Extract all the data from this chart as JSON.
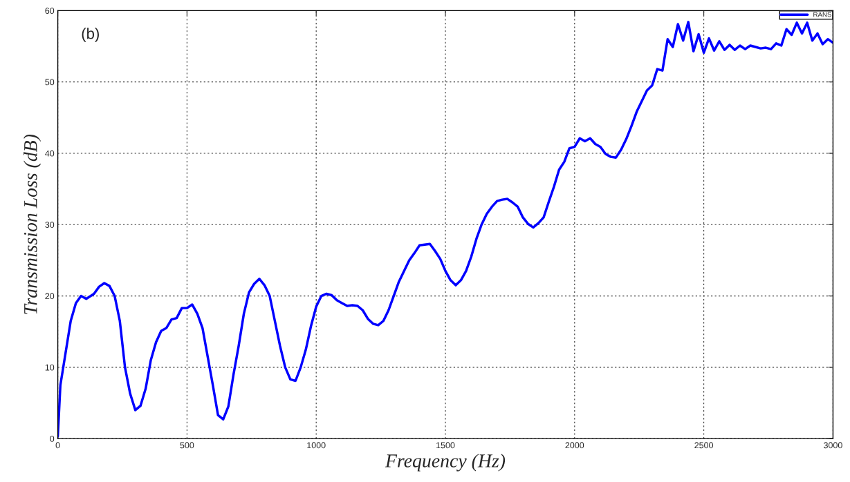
{
  "chart_data": {
    "type": "line",
    "xlabel": "Frequency (Hz)",
    "ylabel": "Transmission Loss (dB)",
    "xlim": [
      0,
      3000
    ],
    "xticks": [
      0,
      500,
      1000,
      1500,
      2000,
      2500,
      3000
    ],
    "ylim": [
      0,
      60
    ],
    "yticks": [
      0,
      10,
      20,
      30,
      40,
      50,
      60
    ],
    "grid": true,
    "legend": "top right",
    "line_style": "solid",
    "marker": "none",
    "annotations": [
      "(b)"
    ],
    "x": [
      0,
      10,
      30,
      50,
      70,
      90,
      110,
      140,
      160,
      180,
      200,
      220,
      240,
      260,
      280,
      300,
      320,
      340,
      360,
      380,
      400,
      420,
      440,
      460,
      480,
      500,
      520,
      540,
      560,
      580,
      600,
      620,
      640,
      660,
      680,
      700,
      720,
      740,
      760,
      780,
      800,
      820,
      840,
      860,
      880,
      900,
      920,
      940,
      960,
      980,
      1000,
      1020,
      1040,
      1060,
      1080,
      1100,
      1120,
      1140,
      1160,
      1180,
      1200,
      1220,
      1240,
      1260,
      1280,
      1300,
      1320,
      1340,
      1360,
      1380,
      1400,
      1420,
      1440,
      1460,
      1480,
      1500,
      1520,
      1540,
      1560,
      1580,
      1600,
      1620,
      1640,
      1660,
      1680,
      1700,
      1720,
      1740,
      1760,
      1780,
      1800,
      1820,
      1840,
      1860,
      1880,
      1900,
      1920,
      1940,
      1960,
      1980,
      2000,
      2020,
      2040,
      2060,
      2080,
      2100,
      2120,
      2140,
      2160,
      2180,
      2200,
      2220,
      2240,
      2260,
      2280,
      2300,
      2320,
      2340,
      2360,
      2380,
      2400,
      2420,
      2440,
      2460,
      2480,
      2500,
      2520,
      2540,
      2560,
      2580,
      2600,
      2620,
      2640,
      2660,
      2680,
      2700,
      2720,
      2740,
      2760,
      2780,
      2800,
      2820,
      2840,
      2860,
      2880,
      2900,
      2920,
      2940,
      2960,
      2980,
      3000
    ],
    "series": [
      {
        "name": "RANS",
        "color": "#0000ff",
        "values": [
          0.3,
          7.5,
          12,
          16.5,
          19,
          20,
          19.6,
          20.3,
          21.3,
          21.8,
          21.4,
          20,
          16.5,
          10,
          6.3,
          4.0,
          4.6,
          7,
          11,
          13.5,
          15.1,
          15.5,
          16.7,
          16.9,
          18.3,
          18.3,
          18.8,
          17.5,
          15.5,
          11.5,
          7.5,
          3.3,
          2.7,
          4.5,
          9,
          13,
          17.5,
          20.5,
          21.7,
          22.4,
          21.5,
          20,
          16.5,
          13,
          10,
          8.3,
          8.1,
          10,
          12.5,
          15.8,
          18.5,
          20,
          20.3,
          20.1,
          19.4,
          19,
          18.6,
          18.7,
          18.6,
          18,
          16.8,
          16.1,
          15.9,
          16.5,
          18,
          20,
          22,
          23.5,
          25,
          26,
          27.1,
          27.2,
          27.3,
          26.3,
          25.2,
          23.5,
          22.2,
          21.5,
          22.2,
          23.5,
          25.5,
          28,
          30,
          31.5,
          32.5,
          33.3,
          33.5,
          33.6,
          33.1,
          32.5,
          31,
          30.1,
          29.6,
          30.2,
          31,
          33.2,
          35.3,
          37.7,
          38.8,
          40.7,
          40.9,
          42.1,
          41.7,
          42.1,
          41.3,
          40.9,
          39.9,
          39.5,
          39.4,
          40.5,
          42,
          43.8,
          45.8,
          47.3,
          48.8,
          49.5,
          51.8,
          51.6,
          56,
          54.9,
          58.1,
          55.8,
          58.4,
          54.3,
          56.7,
          54.1,
          56.1,
          54.4,
          55.7,
          54.5,
          55.2,
          54.5,
          55.1,
          54.6,
          55.1,
          54.9,
          54.7,
          54.8,
          54.6,
          55.4,
          55.1,
          57.4,
          56.6,
          58.3,
          56.8,
          58.3,
          55.8,
          56.8,
          55.3,
          56,
          55.5
        ]
      }
    ]
  }
}
